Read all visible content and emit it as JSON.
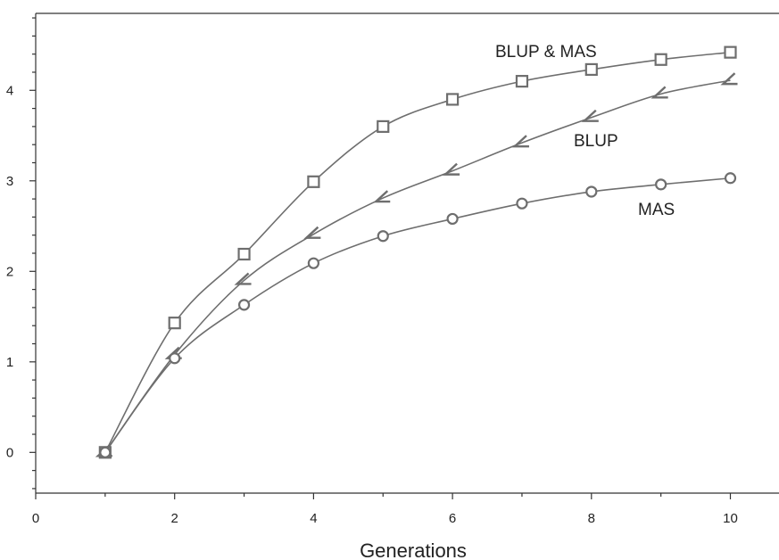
{
  "chart_data": {
    "type": "line",
    "title": "",
    "xlabel": "Generations",
    "ylabel": "",
    "xlim": [
      0,
      10.7
    ],
    "ylim": [
      -0.45,
      4.85
    ],
    "x_ticks": [
      0,
      2,
      4,
      6,
      8,
      10
    ],
    "y_ticks": [
      0,
      1,
      2,
      3,
      4
    ],
    "grid": false,
    "series": [
      {
        "name": "BLUP & MAS",
        "marker": "square",
        "x": [
          1,
          2,
          3,
          4,
          5,
          6,
          7,
          8,
          9,
          10
        ],
        "values": [
          0,
          1.43,
          2.19,
          2.99,
          3.6,
          3.9,
          4.1,
          4.23,
          4.34,
          4.42
        ]
      },
      {
        "name": "BLUP",
        "marker": "check",
        "x": [
          1,
          2,
          3,
          4,
          5,
          6,
          7,
          8,
          9,
          10
        ],
        "values": [
          0,
          1.08,
          1.9,
          2.41,
          2.81,
          3.11,
          3.42,
          3.7,
          3.96,
          4.11
        ]
      },
      {
        "name": "MAS",
        "marker": "circle",
        "x": [
          1,
          2,
          3,
          4,
          5,
          6,
          7,
          8,
          9,
          10
        ],
        "values": [
          0,
          1.04,
          1.63,
          2.09,
          2.39,
          2.58,
          2.75,
          2.88,
          2.96,
          3.03
        ]
      }
    ],
    "colors": {
      "line": "#6e6e6e",
      "marker": "#6e6e6e",
      "axis": "#333333"
    }
  }
}
